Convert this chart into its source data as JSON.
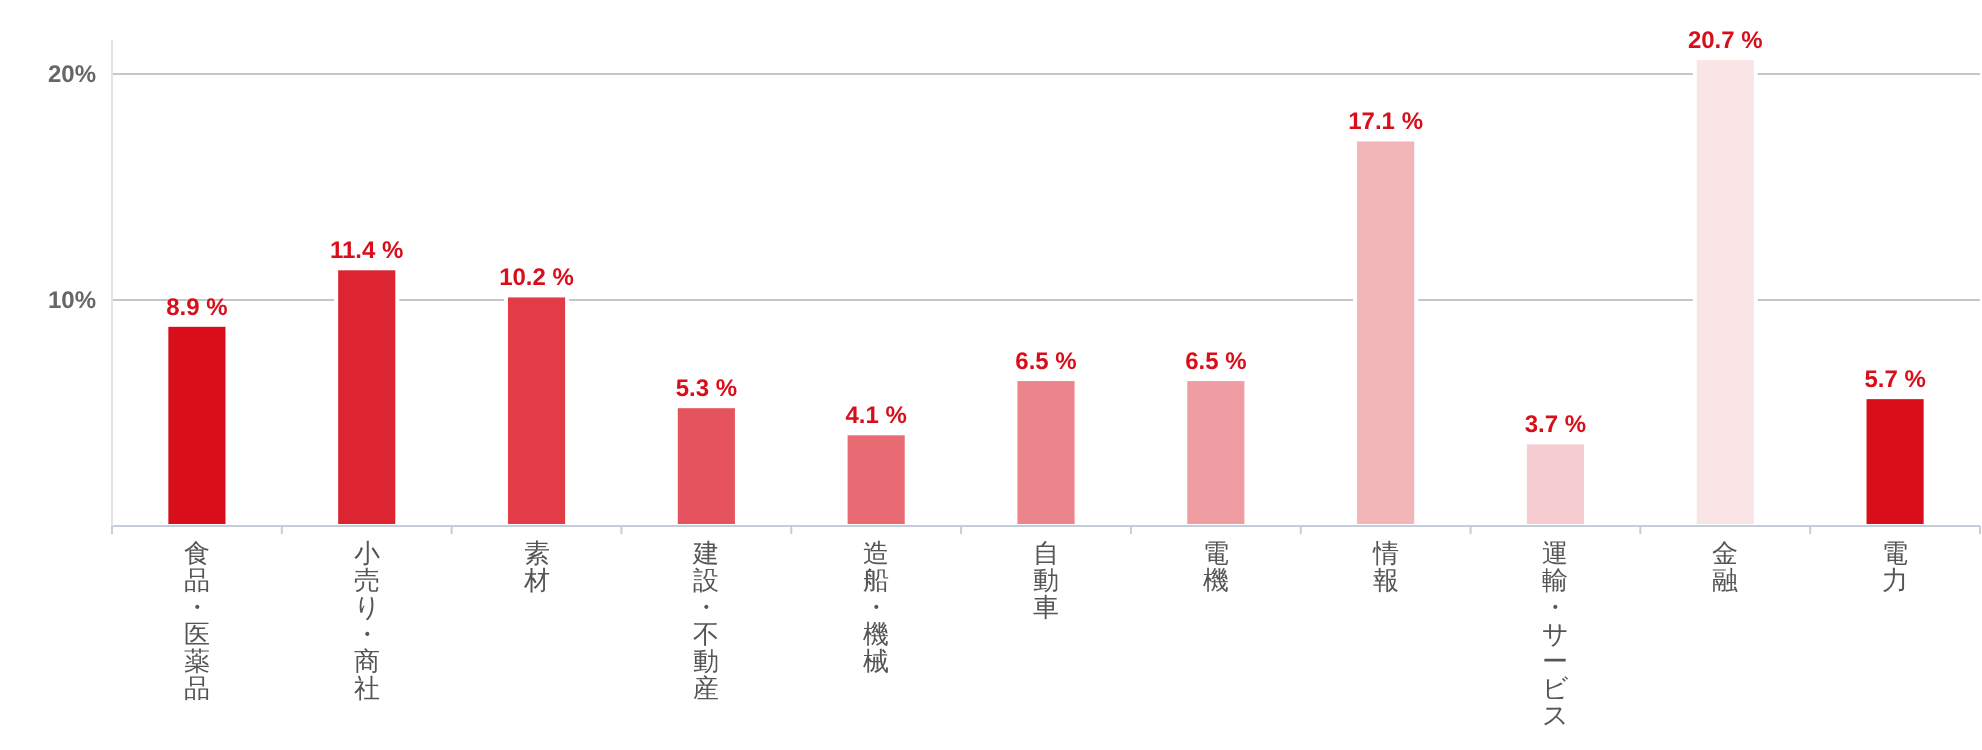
{
  "chart_data": {
    "type": "bar",
    "categories": [
      "食品・医薬品",
      "小売り・商社",
      "素材",
      "建設・不動産",
      "造船・機械",
      "自動車",
      "電機",
      "情報",
      "運輸・サービス",
      "金融",
      "電力"
    ],
    "values": [
      8.9,
      11.4,
      10.2,
      5.3,
      4.1,
      6.5,
      6.5,
      17.1,
      3.7,
      20.7,
      5.7
    ],
    "colors": [
      "#d90e1b",
      "#dd2532",
      "#e13c47",
      "#e5545e",
      "#e86b73",
      "#ec848b",
      "#ef9da2",
      "#f2b5b8",
      "#f5cdd0",
      "#fae5e6",
      "#d90e1b"
    ],
    "value_labels": [
      "8.9 %",
      "11.4 %",
      "10.2 %",
      "5.3 %",
      "4.1 %",
      "6.5 %",
      "6.5 %",
      "17.1 %",
      "3.7 %",
      "20.7 %",
      "5.7 %"
    ],
    "ylim": [
      0,
      21.5
    ],
    "yticks": [
      {
        "value": 0,
        "label": null
      },
      {
        "value": 10,
        "label": "10%"
      },
      {
        "value": 20,
        "label": "20%"
      }
    ],
    "grid": "y"
  }
}
